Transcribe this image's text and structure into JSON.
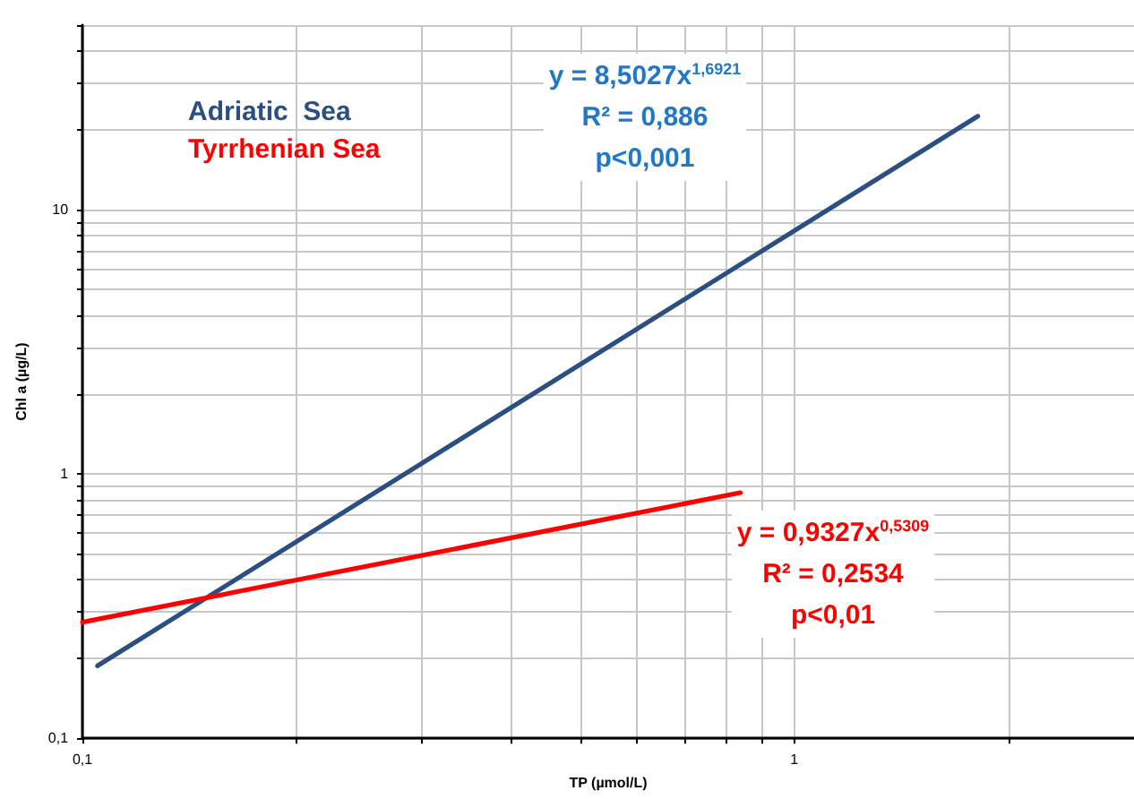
{
  "chart_data": {
    "type": "line",
    "xlabel": "TP (µmol/L)",
    "ylabel": "Chl a (µg/L)",
    "log": "xy",
    "grid": true,
    "legend": "top left",
    "line_style": "solid",
    "marker": "none",
    "xlim": [
      0.1,
      3
    ],
    "ylim": [
      0.1,
      50
    ],
    "xticks": [
      {
        "value": 0.1,
        "label": "0,1"
      },
      {
        "value": 0.2,
        "label": null
      },
      {
        "value": 0.3,
        "label": null
      },
      {
        "value": 0.4,
        "label": null
      },
      {
        "value": 0.5,
        "label": null
      },
      {
        "value": 0.6,
        "label": null
      },
      {
        "value": 0.7,
        "label": null
      },
      {
        "value": 0.8,
        "label": null
      },
      {
        "value": 0.9,
        "label": null
      },
      {
        "value": 1,
        "label": "1"
      },
      {
        "value": 2,
        "label": null
      }
    ],
    "yticks": [
      {
        "value": 0.1,
        "label": "0,1"
      },
      {
        "value": 0.2,
        "label": null
      },
      {
        "value": 0.3,
        "label": null
      },
      {
        "value": 0.4,
        "label": null
      },
      {
        "value": 0.5,
        "label": null
      },
      {
        "value": 0.6,
        "label": null
      },
      {
        "value": 0.7,
        "label": null
      },
      {
        "value": 0.8,
        "label": null
      },
      {
        "value": 0.9,
        "label": null
      },
      {
        "value": 1,
        "label": "1"
      },
      {
        "value": 2,
        "label": null
      },
      {
        "value": 3,
        "label": null
      },
      {
        "value": 4,
        "label": null
      },
      {
        "value": 5,
        "label": null
      },
      {
        "value": 6,
        "label": null
      },
      {
        "value": 7,
        "label": null
      },
      {
        "value": 8,
        "label": null
      },
      {
        "value": 9,
        "label": null
      },
      {
        "value": 10,
        "label": "10"
      },
      {
        "value": 20,
        "label": null
      },
      {
        "value": 30,
        "label": null
      },
      {
        "value": 40,
        "label": null
      },
      {
        "value": 50,
        "label": null
      }
    ],
    "series": [
      {
        "name": "Adriatic  Sea",
        "color": "#2b4f81",
        "x": [
          0.105,
          1.81
        ],
        "values": [
          0.188,
          22.6
        ]
      },
      {
        "name": "Tyrrhenian Sea",
        "color": "#ff0000",
        "x": [
          0.1,
          0.84
        ],
        "values": [
          0.275,
          0.85
        ]
      }
    ],
    "annotations": [
      "y = 8,5027x$^{1,6921}$\nR² = 0,886\np<0,001",
      "y = 0,9327x$^{0,5309}$\nR² = 0,2534\np<0,01"
    ]
  }
}
